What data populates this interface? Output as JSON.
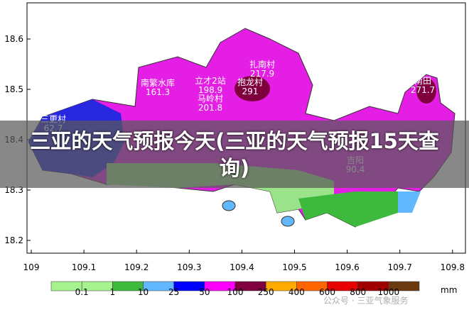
{
  "map": {
    "xticks": [
      "109",
      "109.1",
      "109.2",
      "109.3",
      "109.4",
      "109.5",
      "109.6",
      "109.7",
      "109.8"
    ],
    "yticks": [
      "18.6",
      "18.5",
      "18.4",
      "18.3",
      "18.2"
    ],
    "stations": [
      {
        "name": "南繁水库",
        "value": "161.3"
      },
      {
        "name": "立才2站",
        "value": "198.9"
      },
      {
        "name": "马岭村",
        "value": "201.8"
      },
      {
        "name": "扎南村",
        "value": "217.9"
      },
      {
        "name": "抱龙村",
        "value": "291"
      },
      {
        "name": "南田",
        "value": "271.7"
      },
      {
        "name": "三更村",
        "value": "62.7"
      },
      {
        "name": "吉阳",
        "value": "90.4"
      }
    ],
    "legend": {
      "labels": [
        "0.1",
        "1",
        "10",
        "25",
        "50",
        "100",
        "250",
        "400",
        "600",
        "800",
        "1000"
      ],
      "unit": "mm",
      "colors": [
        "#a6f28f",
        "#a6f28f",
        "#3dba3d",
        "#61b8ff",
        "#0000fe",
        "#fa00fa",
        "#80003f",
        "#ffaa00",
        "#ff6600",
        "#e60000",
        "#a00000",
        "#6b3a10"
      ]
    },
    "banner": "三亚的天气预报今天(三亚的天气预报15天查询)",
    "watermark": "公众号 · 三亚气象服务"
  }
}
